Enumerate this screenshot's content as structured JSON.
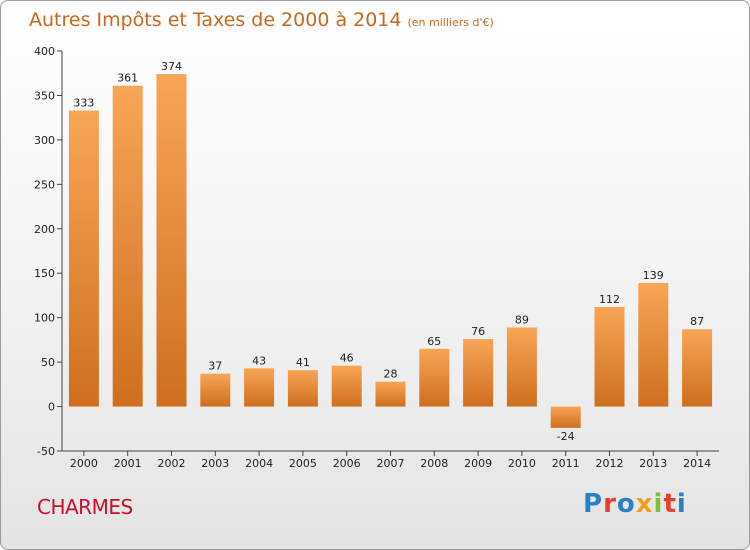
{
  "header": {
    "title": "Autres Impôts et Taxes de 2000 à 2014",
    "unit": "(en milliers d'€)"
  },
  "footer": {
    "place": "CHARMES",
    "logo_text": "Proxiti"
  },
  "colors": {
    "title": "#c8681e",
    "bar_top": "#f7a656",
    "bar_bottom": "#cf6e1f",
    "place": "#c8102e",
    "logo": [
      "#2a7fc9",
      "#e8402a",
      "#2a7fc9",
      "#f0a020",
      "#7bbf3a",
      "#e8402a",
      "#2a7fc9"
    ]
  },
  "chart_data": {
    "type": "bar",
    "title": "Autres Impôts et Taxes de 2000 à 2014",
    "categories": [
      "2000",
      "2001",
      "2002",
      "2003",
      "2004",
      "2005",
      "2006",
      "2007",
      "2008",
      "2009",
      "2010",
      "2011",
      "2012",
      "2013",
      "2014"
    ],
    "values": [
      333,
      361,
      374,
      37,
      43,
      41,
      46,
      28,
      65,
      76,
      89,
      -24,
      112,
      139,
      87
    ],
    "ylim": [
      -50,
      400
    ],
    "yticks": [
      -50,
      0,
      50,
      100,
      150,
      200,
      250,
      300,
      350,
      400
    ],
    "grid": false,
    "data_labels": true
  }
}
